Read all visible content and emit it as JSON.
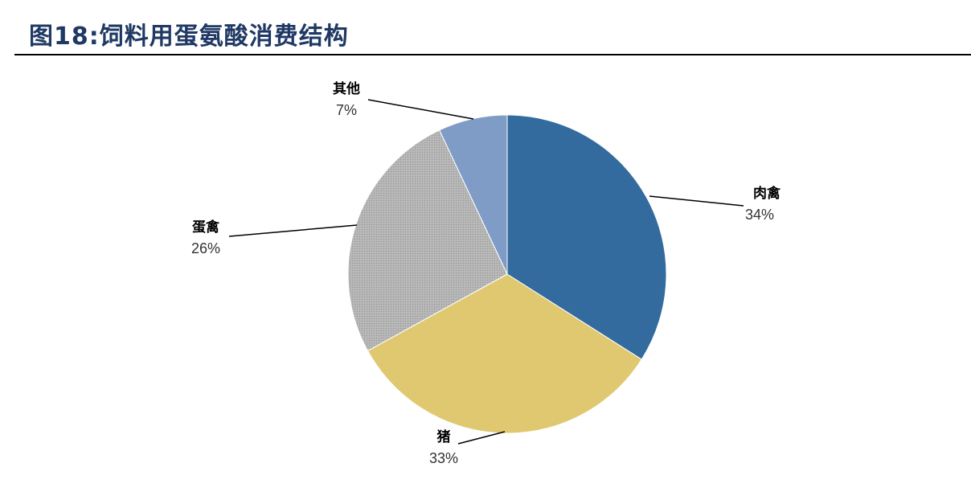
{
  "figure": {
    "number": "图18:",
    "title": "饲料用蛋氨酸消费结构"
  },
  "chart_data": {
    "type": "pie",
    "start_angle_deg": 0,
    "direction": "clockwise",
    "slices": [
      {
        "label": "肉禽",
        "value": 34,
        "display": "34%",
        "color": "#336b9e",
        "pattern": "solid"
      },
      {
        "label": "猪",
        "value": 33,
        "display": "33%",
        "color": "#e0c870",
        "pattern": "solid"
      },
      {
        "label": "蛋禽",
        "value": 26,
        "display": "26%",
        "color": "#b3b3b3",
        "pattern": "dotted"
      },
      {
        "label": "其他",
        "value": 7,
        "display": "7%",
        "color": "#7f9cc7",
        "pattern": "solid"
      }
    ],
    "legend": "none"
  }
}
